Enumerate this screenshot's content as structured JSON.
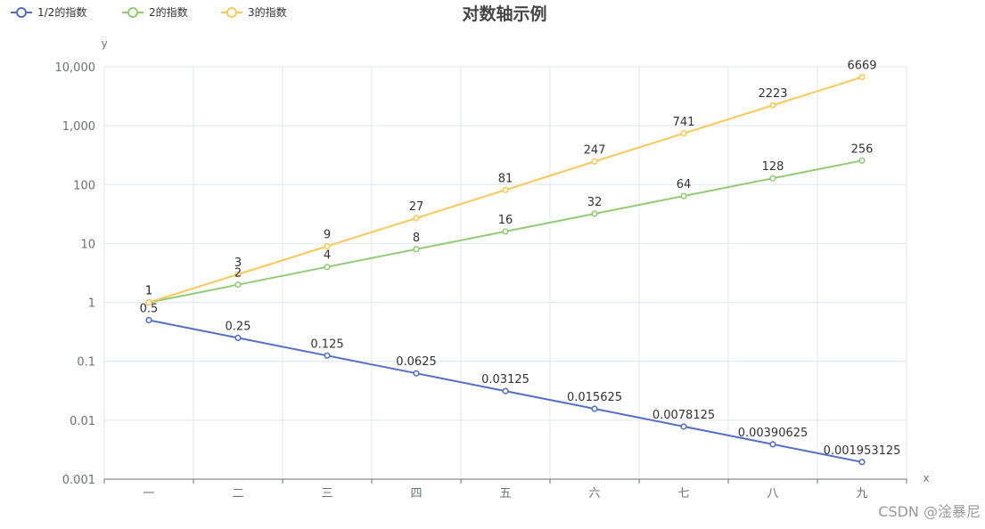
{
  "chart_data": {
    "type": "line",
    "title": "对数轴示例",
    "xlabel": "x",
    "ylabel": "y",
    "y_scale": "log",
    "ylim": [
      0.001,
      10000
    ],
    "y_ticks": [
      "0.001",
      "0.01",
      "0.1",
      "1",
      "10",
      "100",
      "1,000",
      "10,000"
    ],
    "y_tick_values": [
      0.001,
      0.01,
      0.1,
      1,
      10,
      100,
      1000,
      10000
    ],
    "categories": [
      "一",
      "二",
      "三",
      "四",
      "五",
      "六",
      "七",
      "八",
      "九"
    ],
    "grid": true,
    "legend_position": "top-left",
    "series": [
      {
        "name": "1/2的指数",
        "color": "#5470c6",
        "values": [
          0.5,
          0.25,
          0.125,
          0.0625,
          0.03125,
          0.015625,
          0.0078125,
          0.00390625,
          0.001953125
        ],
        "labels": [
          "0.5",
          "0.25",
          "0.125",
          "0.0625",
          "0.03125",
          "0.015625",
          "0.0078125",
          "0.00390625",
          "0.001953125"
        ]
      },
      {
        "name": "2的指数",
        "color": "#91cc75",
        "values": [
          1,
          2,
          4,
          8,
          16,
          32,
          64,
          128,
          256
        ],
        "labels": [
          "1",
          "2",
          "4",
          "8",
          "16",
          "32",
          "64",
          "128",
          "256"
        ]
      },
      {
        "name": "3的指数",
        "color": "#fac858",
        "values": [
          1,
          3,
          9,
          27,
          81,
          247,
          741,
          2223,
          6669
        ],
        "labels": [
          "1",
          "3",
          "9",
          "27",
          "81",
          "247",
          "741",
          "2223",
          "6669"
        ]
      }
    ]
  },
  "watermark": "CSDN @淦暴尼"
}
